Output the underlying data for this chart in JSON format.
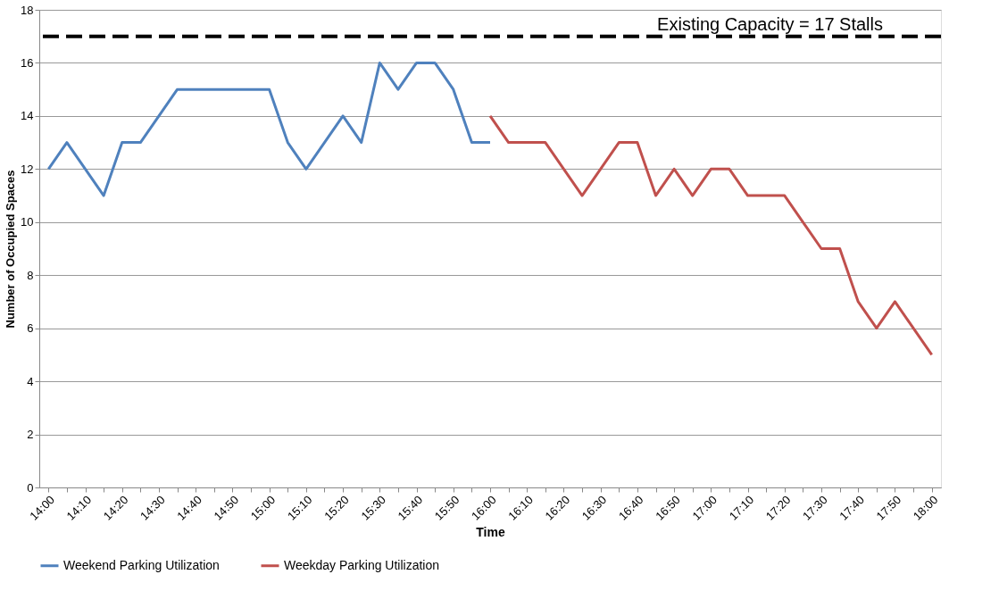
{
  "chart_data": {
    "type": "line",
    "xlabel": "Time",
    "ylabel": "Number of Occupied Spaces",
    "categories": [
      "14:00",
      null,
      "14:10",
      null,
      "14:20",
      null,
      "14:30",
      null,
      "14:40",
      null,
      "14:50",
      null,
      "15:00",
      null,
      "15:10",
      null,
      "15:20",
      null,
      "15:30",
      null,
      "15:40",
      null,
      "15:50",
      null,
      "16:00",
      null,
      "16:10",
      null,
      "16:20",
      null,
      "16:30",
      null,
      "16:40",
      null,
      "16:50",
      null,
      "17:00",
      null,
      "17:10",
      null,
      "17:20",
      null,
      "17:30",
      null,
      "17:40",
      null,
      "17:50",
      null,
      "18:00"
    ],
    "series": [
      {
        "name": "Weekend Parking Utilization",
        "color": "#4f81bd",
        "values": [
          12,
          13,
          12,
          11,
          13,
          13,
          14,
          15,
          15,
          15,
          15,
          15,
          15,
          13,
          12,
          13,
          14,
          13,
          16,
          15,
          16,
          16,
          15,
          13,
          13,
          null,
          null,
          null,
          null,
          null,
          null,
          null,
          null,
          null,
          null,
          null,
          null,
          null,
          null,
          null,
          null,
          null,
          null,
          null,
          null,
          null,
          null,
          null,
          null
        ]
      },
      {
        "name": "Weekday Parking Utilization",
        "color": "#c0504d",
        "values": [
          null,
          null,
          null,
          null,
          null,
          null,
          null,
          null,
          null,
          null,
          null,
          null,
          null,
          null,
          null,
          null,
          null,
          null,
          null,
          null,
          null,
          null,
          null,
          null,
          14,
          13,
          13,
          13,
          12,
          11,
          12,
          13,
          13,
          11,
          12,
          11,
          12,
          12,
          11,
          11,
          11,
          10,
          9,
          9,
          7,
          6,
          7,
          6,
          5
        ]
      }
    ],
    "ylim": [
      0,
      18
    ],
    "yticks": [
      0,
      2,
      4,
      6,
      8,
      10,
      12,
      14,
      16,
      18
    ],
    "ref_lines": [
      {
        "axis": "y",
        "value": 17,
        "label": "Existing Capacity = 17 Stalls",
        "color": "#000000",
        "line_style": "dashed"
      }
    ],
    "grid": "y",
    "legend": "bottom",
    "marker": "none",
    "line_style": "solid"
  }
}
